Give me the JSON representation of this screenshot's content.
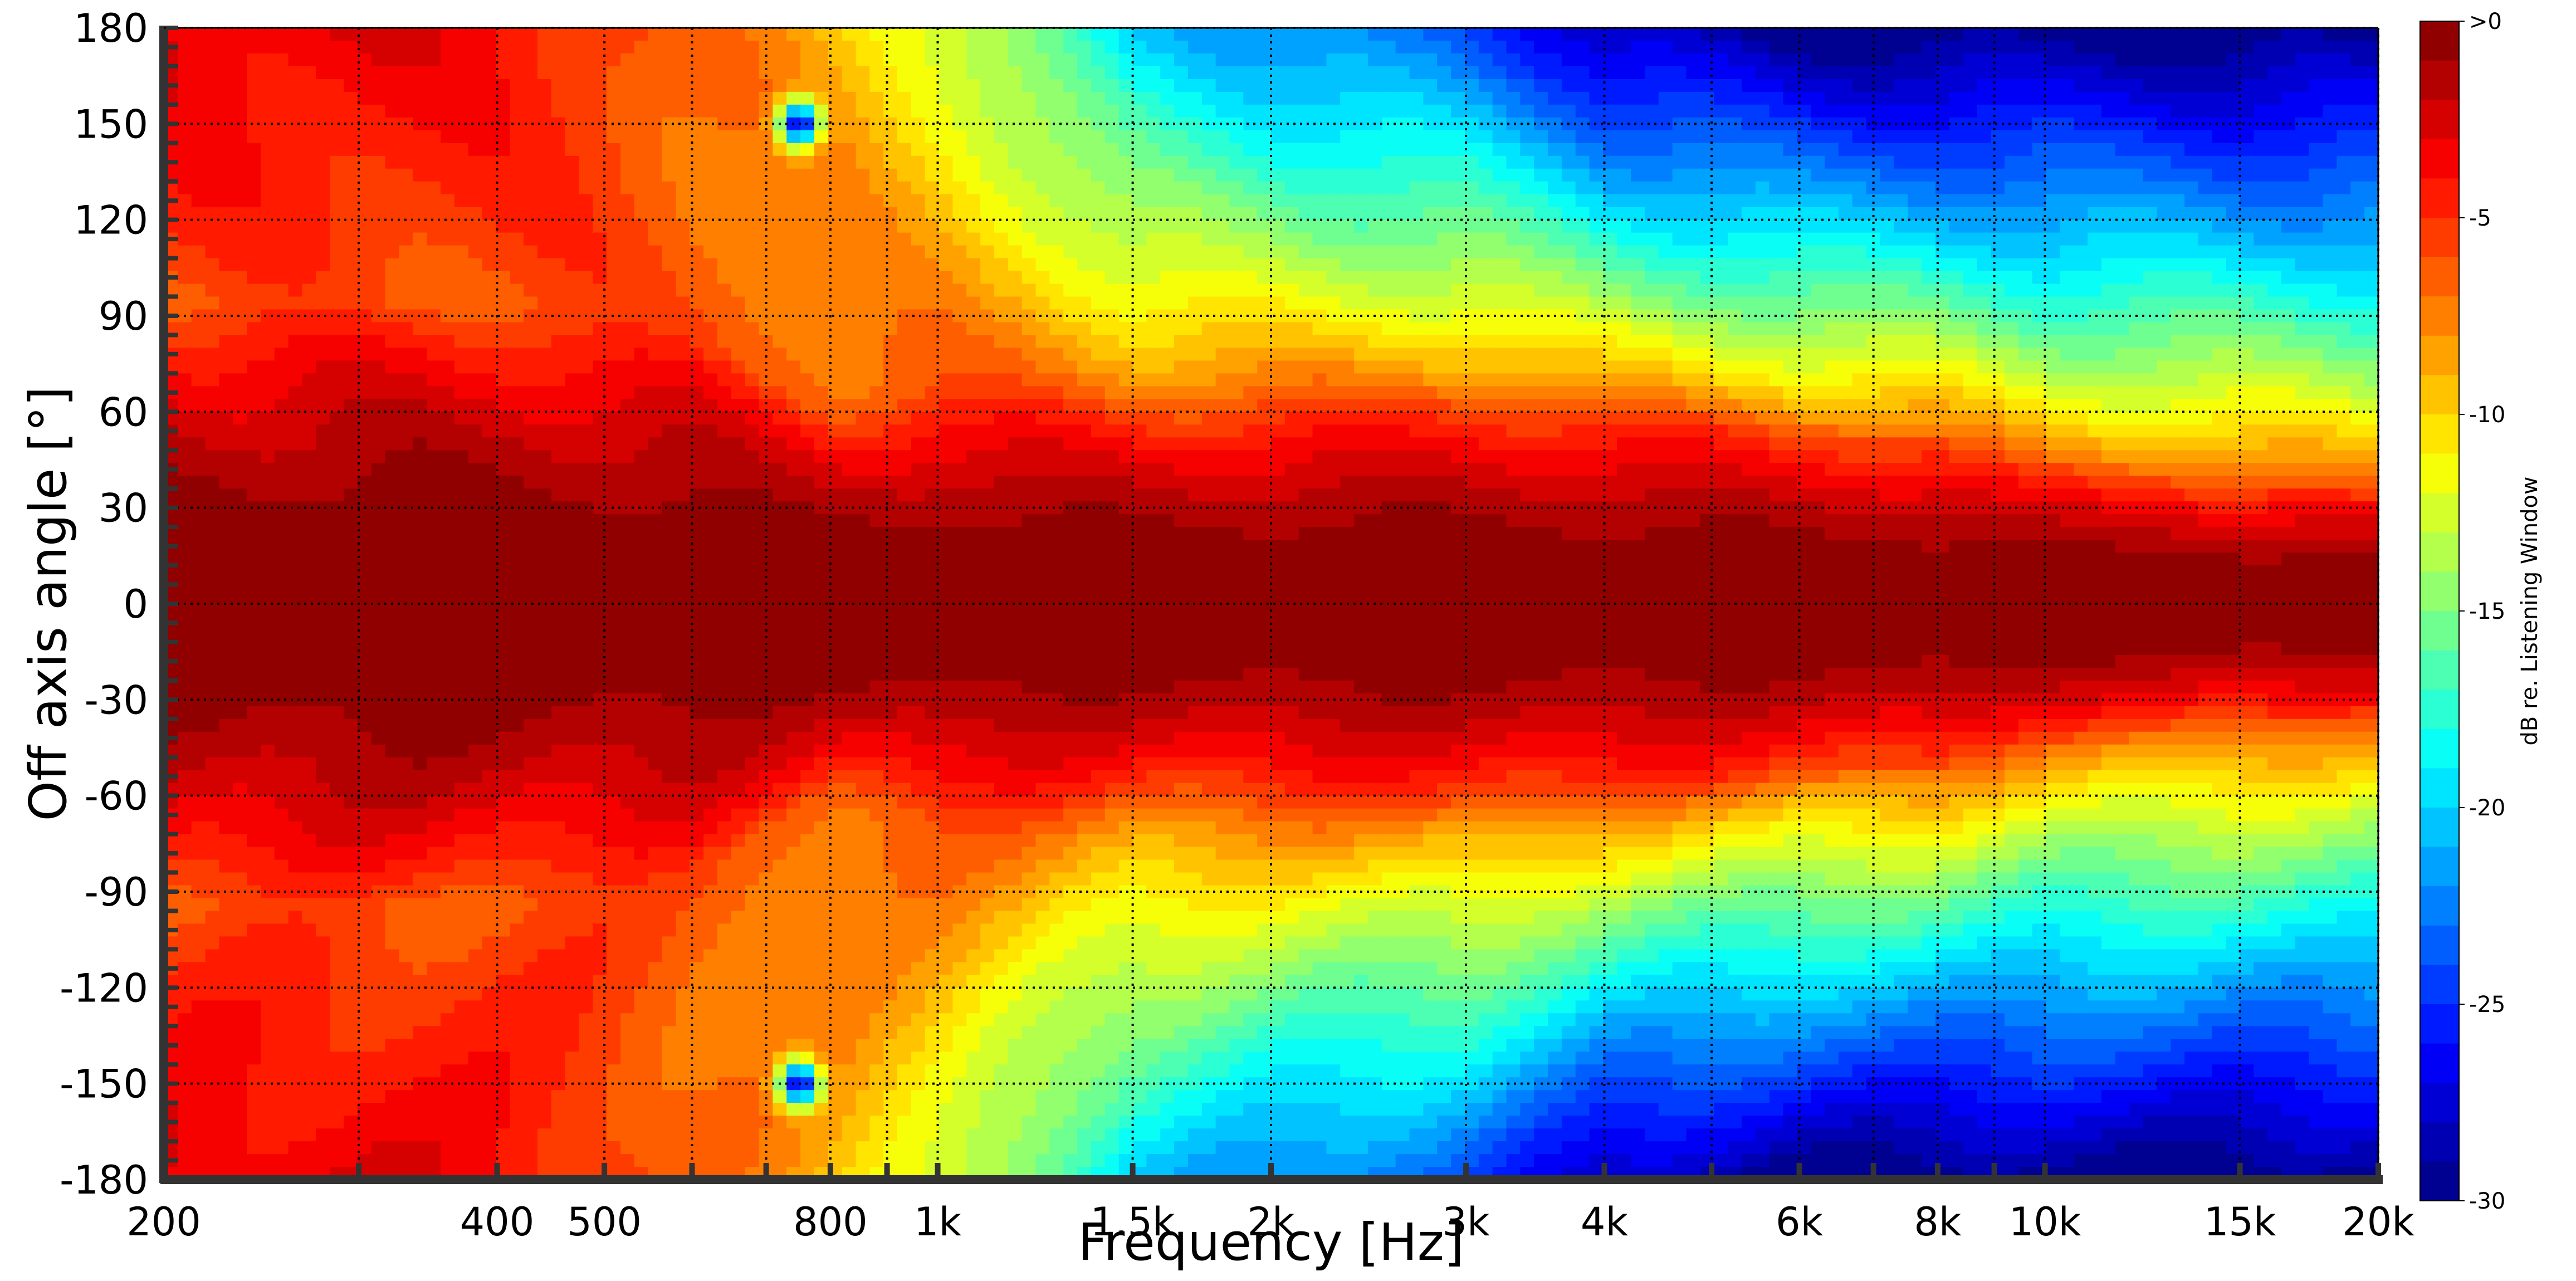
{
  "chart_data": {
    "type": "heatmap",
    "title": "",
    "xlabel": "Frequency [Hz]",
    "ylabel": "Off axis angle [°]",
    "x_scale": "log",
    "xlim": [
      200,
      20000
    ],
    "ylim": [
      -180,
      180
    ],
    "x_ticks": [
      {
        "value": 200,
        "label": "200"
      },
      {
        "value": 400,
        "label": "400"
      },
      {
        "value": 500,
        "label": "500"
      },
      {
        "value": 800,
        "label": "800"
      },
      {
        "value": 1000,
        "label": "1k"
      },
      {
        "value": 1500,
        "label": "1.5k"
      },
      {
        "value": 2000,
        "label": "2k"
      },
      {
        "value": 3000,
        "label": "3k"
      },
      {
        "value": 4000,
        "label": "4k"
      },
      {
        "value": 6000,
        "label": "6k"
      },
      {
        "value": 8000,
        "label": "8k"
      },
      {
        "value": 10000,
        "label": "10k"
      },
      {
        "value": 15000,
        "label": "15k"
      },
      {
        "value": 20000,
        "label": "20k"
      }
    ],
    "x_gridlines": [
      200,
      300,
      400,
      500,
      600,
      700,
      800,
      900,
      1000,
      1500,
      2000,
      3000,
      4000,
      5000,
      6000,
      7000,
      8000,
      9000,
      10000,
      15000,
      20000
    ],
    "y_ticks": [
      {
        "value": 180,
        "label": "180"
      },
      {
        "value": 150,
        "label": "150"
      },
      {
        "value": 120,
        "label": "120"
      },
      {
        "value": 90,
        "label": "90"
      },
      {
        "value": 60,
        "label": "60"
      },
      {
        "value": 30,
        "label": "30"
      },
      {
        "value": 0,
        "label": "0"
      },
      {
        "value": -30,
        "label": "-30"
      },
      {
        "value": -60,
        "label": "-60"
      },
      {
        "value": -90,
        "label": "-90"
      },
      {
        "value": -120,
        "label": "-120"
      },
      {
        "value": -150,
        "label": "-150"
      },
      {
        "value": -180,
        "label": "-180"
      }
    ],
    "grid": true,
    "grid_style": "dotted",
    "colorbar": {
      "label": "dB re. Listening Window",
      "range": [
        -30,
        0
      ],
      "ticks": [
        {
          "value": 0,
          "label": ">0"
        },
        {
          "value": -5,
          "label": "-5"
        },
        {
          "value": -10,
          "label": "-10"
        },
        {
          "value": -15,
          "label": "-15"
        },
        {
          "value": -20,
          "label": "-20"
        },
        {
          "value": -25,
          "label": "-25"
        },
        {
          "value": -30,
          "label": "-30"
        }
      ],
      "levels": 30,
      "colormap": "jet",
      "placement": "right"
    },
    "contour_levels_db": [
      0,
      -1,
      -2,
      -3,
      -4,
      -5,
      -6,
      -7,
      -8,
      -9,
      -10,
      -11,
      -12,
      -13,
      -14,
      -15,
      -16,
      -17,
      -18,
      -19,
      -20,
      -21,
      -22,
      -23,
      -24,
      -25,
      -26,
      -27,
      -28,
      -29,
      -30
    ],
    "frequencies": [
      200,
      300,
      400,
      500,
      600,
      700,
      800,
      1000,
      1500,
      2000,
      3000,
      4000,
      6000,
      8000,
      10000,
      15000,
      20000
    ],
    "beamwidth_minus6db_deg": [
      95,
      95,
      95,
      90,
      85,
      70,
      60,
      68,
      62,
      62,
      65,
      60,
      55,
      50,
      42,
      38,
      35
    ],
    "level_at_plus_minus_180_db": [
      -3,
      -3,
      -4,
      -5,
      -7,
      -8,
      -9,
      -12,
      -20,
      -22,
      -24,
      -28,
      -30,
      -30,
      -30,
      -30,
      -30
    ],
    "annotations": [
      {
        "frequency": 750,
        "angle": 150,
        "note": "dip approx. -30 dB"
      },
      {
        "frequency": 750,
        "angle": -150,
        "note": "dip approx. -30 dB"
      }
    ]
  }
}
